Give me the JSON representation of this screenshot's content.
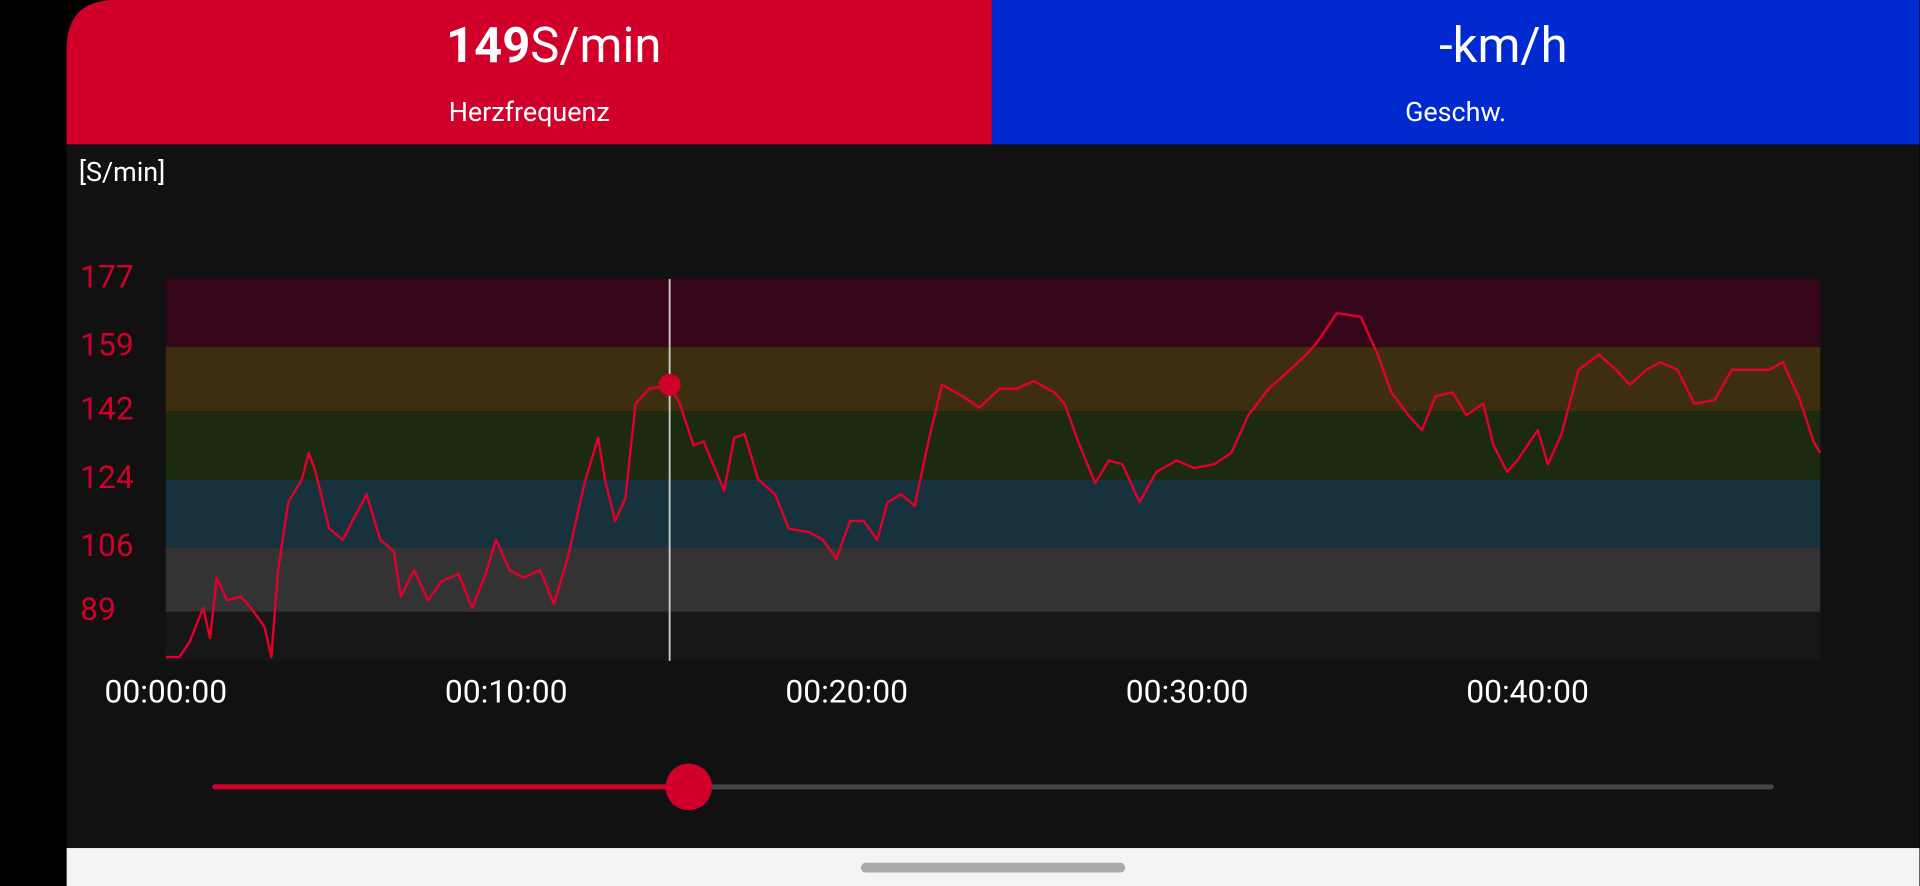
{
  "header": {
    "tiles": [
      {
        "value": 149,
        "unit": "S/min",
        "label": "Herzfrequenz",
        "color": "#d0002a"
      },
      {
        "value": "-",
        "unit": "km/h",
        "label": "Geschw.",
        "color": "#0029cf"
      }
    ]
  },
  "chart_data": {
    "type": "line",
    "y_label": "[S/min]",
    "color": "#e0002a",
    "x": [
      0.0,
      0.4,
      0.7,
      1.1,
      1.3,
      1.5,
      1.8,
      2.2,
      2.5,
      2.9,
      3.1,
      3.3,
      3.6,
      4.0,
      4.2,
      4.4,
      4.8,
      5.2,
      5.6,
      5.9,
      6.3,
      6.7,
      6.9,
      7.3,
      7.7,
      8.1,
      8.6,
      9.0,
      9.4,
      9.7,
      10.1,
      10.5,
      11.0,
      11.4,
      11.8,
      12.1,
      12.3,
      12.7,
      12.9,
      13.2,
      13.5,
      13.8,
      14.2,
      14.8,
      15.1,
      15.5,
      15.8,
      16.4,
      16.7,
      17.0,
      17.4,
      17.9,
      18.3,
      18.9,
      19.3,
      19.7,
      20.1,
      20.5,
      20.9,
      21.2,
      21.6,
      22.0,
      22.4,
      22.8,
      23.4,
      23.9,
      24.5,
      25.0,
      25.5,
      26.1,
      26.4,
      26.8,
      27.3,
      27.7,
      28.1,
      28.6,
      29.1,
      29.7,
      30.2,
      30.8,
      31.3,
      31.8,
      32.4,
      32.9,
      33.5,
      33.8,
      34.4,
      35.1,
      35.6,
      36.0,
      36.5,
      36.9,
      37.3,
      37.8,
      38.2,
      38.7,
      39.0,
      39.4,
      39.7,
      40.3,
      40.6,
      41.0,
      41.5,
      42.1,
      42.6,
      43.0,
      43.5,
      43.9,
      44.4,
      44.9,
      45.5,
      46.0,
      46.5,
      47.1,
      47.5,
      48.0,
      48.4,
      48.6
    ],
    "values": [
      77,
      77,
      81,
      90,
      82,
      98,
      92,
      93,
      90,
      85,
      77,
      100,
      118,
      124,
      131,
      126,
      111,
      108,
      115,
      120,
      108,
      105,
      93,
      100,
      92,
      97,
      99,
      90,
      99,
      108,
      100,
      98,
      100,
      91,
      103,
      115,
      123,
      135,
      124,
      113,
      119,
      144,
      148,
      149,
      144,
      133,
      134,
      121,
      135,
      136,
      124,
      120,
      111,
      110,
      108,
      103,
      113,
      113,
      108,
      118,
      120,
      117,
      134,
      149,
      146,
      143,
      148,
      148,
      150,
      147,
      144,
      134,
      123,
      129,
      128,
      118,
      126,
      129,
      127,
      128,
      131,
      141,
      148,
      152,
      157,
      160,
      168,
      167,
      157,
      147,
      141,
      137,
      146,
      147,
      141,
      144,
      133,
      126,
      129,
      137,
      128,
      136,
      153,
      157,
      153,
      149,
      153,
      155,
      153,
      144,
      145,
      153,
      153,
      153,
      155,
      145,
      134,
      131
    ],
    "xlim": [
      0,
      48.6
    ],
    "ylim": [
      76,
      177
    ],
    "xticks": [
      {
        "value": 0,
        "label": "00:00:00"
      },
      {
        "value": 10,
        "label": "00:10:00"
      },
      {
        "value": 20,
        "label": "00:20:00"
      },
      {
        "value": 30,
        "label": "00:30:00"
      },
      {
        "value": 40,
        "label": "00:40:00"
      }
    ],
    "yticks": [
      89,
      106,
      124,
      142,
      159,
      177
    ],
    "zone_colors": [
      "#171717",
      "#333333",
      "#17323c",
      "#1c2a10",
      "#3d2f0d",
      "#36071a"
    ],
    "cursor": {
      "x": 14.8,
      "value": 149
    }
  }
}
